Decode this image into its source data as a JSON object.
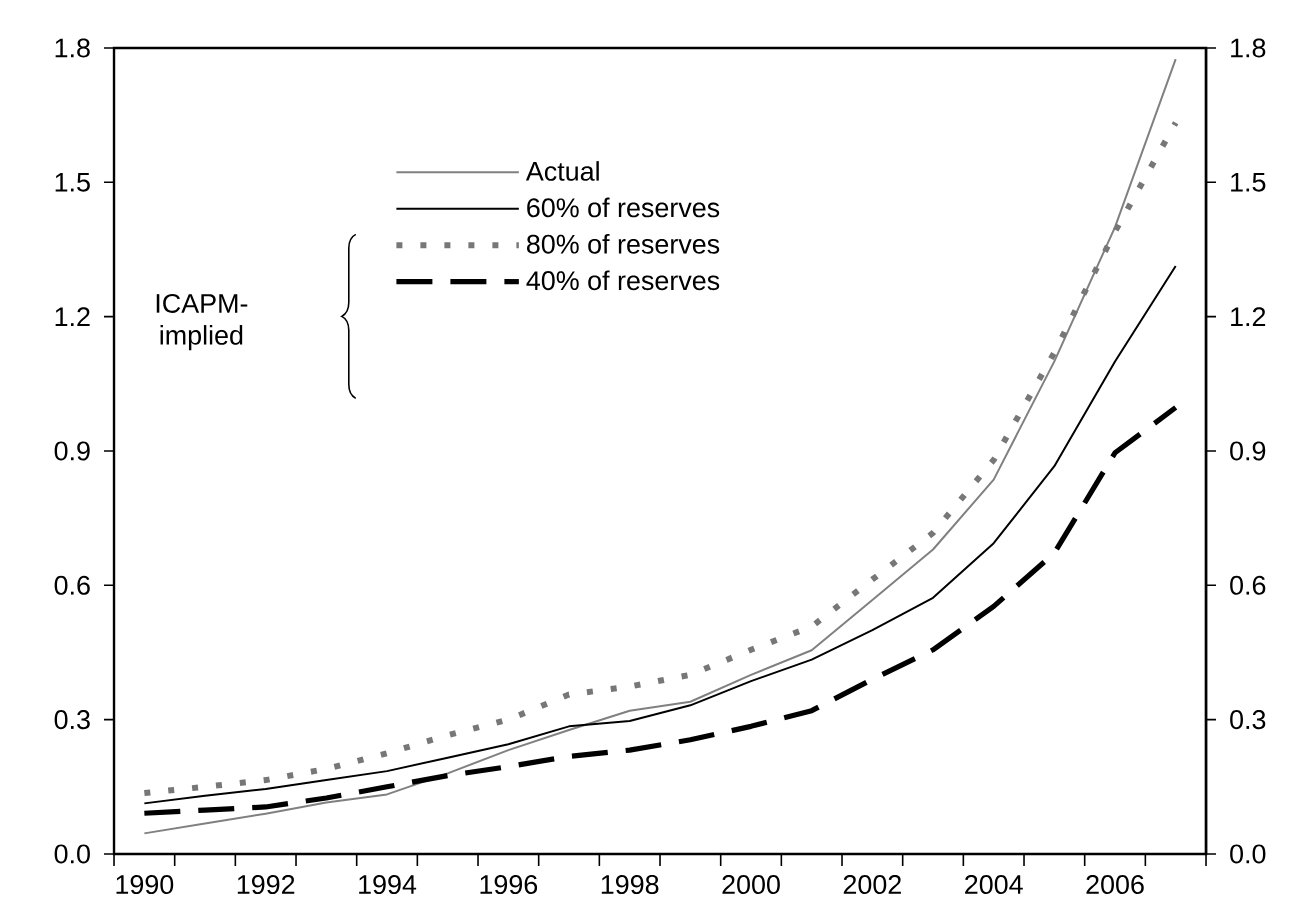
{
  "chart_data": {
    "type": "line",
    "categories": [
      "1990",
      null,
      "1992",
      null,
      "1994",
      null,
      "1996",
      null,
      "1998",
      null,
      "2000",
      null,
      "2002",
      null,
      "2004",
      null,
      "2006",
      null
    ],
    "series": [
      {
        "name": "Actual",
        "color": "#808080",
        "line_style": "solid",
        "values": [
          0.046,
          0.068,
          0.09,
          0.115,
          0.133,
          0.18,
          0.232,
          0.277,
          0.32,
          0.34,
          0.4,
          0.455,
          0.567,
          0.68,
          0.836,
          1.1,
          1.4,
          1.775
        ]
      },
      {
        "name": "60% of reserves",
        "color": "#000000",
        "line_style": "solid",
        "values": [
          0.113,
          0.13,
          0.145,
          0.165,
          0.185,
          0.215,
          0.245,
          0.285,
          0.297,
          0.332,
          0.386,
          0.434,
          0.5,
          0.572,
          0.694,
          0.866,
          1.1,
          1.313
        ]
      },
      {
        "name": "80% of reserves",
        "color": "#777777",
        "line_style": "dotted",
        "values": [
          0.136,
          0.15,
          0.165,
          0.19,
          0.225,
          0.265,
          0.3,
          0.356,
          0.374,
          0.4,
          0.456,
          0.508,
          0.613,
          0.717,
          0.88,
          1.12,
          1.39,
          1.633
        ]
      },
      {
        "name": "40% of reserves",
        "color": "#000000",
        "line_style": "dashed",
        "values": [
          0.091,
          0.098,
          0.105,
          0.125,
          0.15,
          0.175,
          0.195,
          0.218,
          0.232,
          0.255,
          0.285,
          0.32,
          0.39,
          0.456,
          0.553,
          0.672,
          0.896,
          0.997
        ]
      }
    ],
    "ylim": [
      0,
      1.8
    ],
    "yticks": [
      {
        "value": 0,
        "label": "0.0"
      },
      0.3,
      0.6,
      0.9,
      1.2,
      1.5,
      1.8
    ],
    "y2lim": [
      0,
      1.8
    ],
    "y2ticks": [
      {
        "value": 0,
        "label": "0.0"
      },
      0.3,
      0.6,
      0.9,
      1.2,
      1.5,
      1.8
    ],
    "legend": "top left",
    "annotations": [
      "ICAPM-implied"
    ]
  }
}
